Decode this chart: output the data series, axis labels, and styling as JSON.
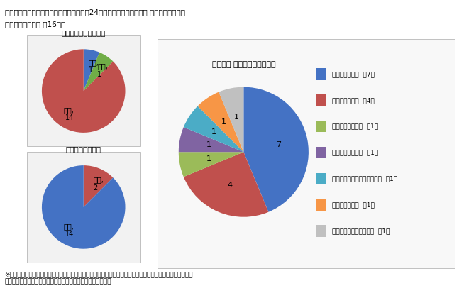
{
  "title_line1": "イ　国家公務員採用１種試験による採用者24人の専門区分、出身大学 学部、性別の内訳",
  "title_line2": "（ｊ）事務系区分 計16人）",
  "pie1_title": "専門区分　単位：人）",
  "pie1_labels": [
    "行政,\n1",
    "経済,\n1",
    "法律,\n14"
  ],
  "pie1_values": [
    1,
    1,
    14
  ],
  "pie1_colors": [
    "#4472c4",
    "#70ad47",
    "#c0504d"
  ],
  "pie2_title": "出身大学 学部等　単位：人）",
  "pie2_labels": [
    "東京大学法学部",
    "京都大学法学部",
    "東京大学教養学部",
    "東京大学経済学部",
    "東京大学大学院工学系研究科",
    "東北大学法学部",
    "早稲田大学政治経済学部"
  ],
  "pie2_values": [
    7,
    4,
    1,
    1,
    1,
    1,
    1
  ],
  "pie2_colors": [
    "#4472c4",
    "#c0504d",
    "#9bbb59",
    "#8064a2",
    "#4bacc6",
    "#f79646",
    "#c0c0c0"
  ],
  "pie2_legend_labels": [
    "東京大学法学部  （7）",
    "京都大学法学部  （4）",
    "東京大学教養学部  （1）",
    "東京大学経済学部  （1）",
    "東京大学大学院工学系研究科  （1）",
    "東北大学法学部  （1）",
    "早稲田大学政治経済学部  （1）"
  ],
  "pie2_slice_labels": [
    "7",
    "4",
    "1",
    "1",
    "1",
    "1",
    "1"
  ],
  "pie3_title": "性別　単位：人）",
  "pie3_labels": [
    "女性,\n2",
    "男性,\n14"
  ],
  "pie3_values": [
    2,
    14
  ],
  "pie3_colors": [
    "#c0504d",
    "#4472c4"
  ],
  "footnote": "※　国家公務員採用１種試験（行政、法律又は経済に限る。）の採用候補者名簿の中から、平成２４年４月１\n　　日から平成２５年３月３１日までに採用した一般職の職員",
  "background_color": "#ffffff",
  "box_color": "#f2f2f2"
}
